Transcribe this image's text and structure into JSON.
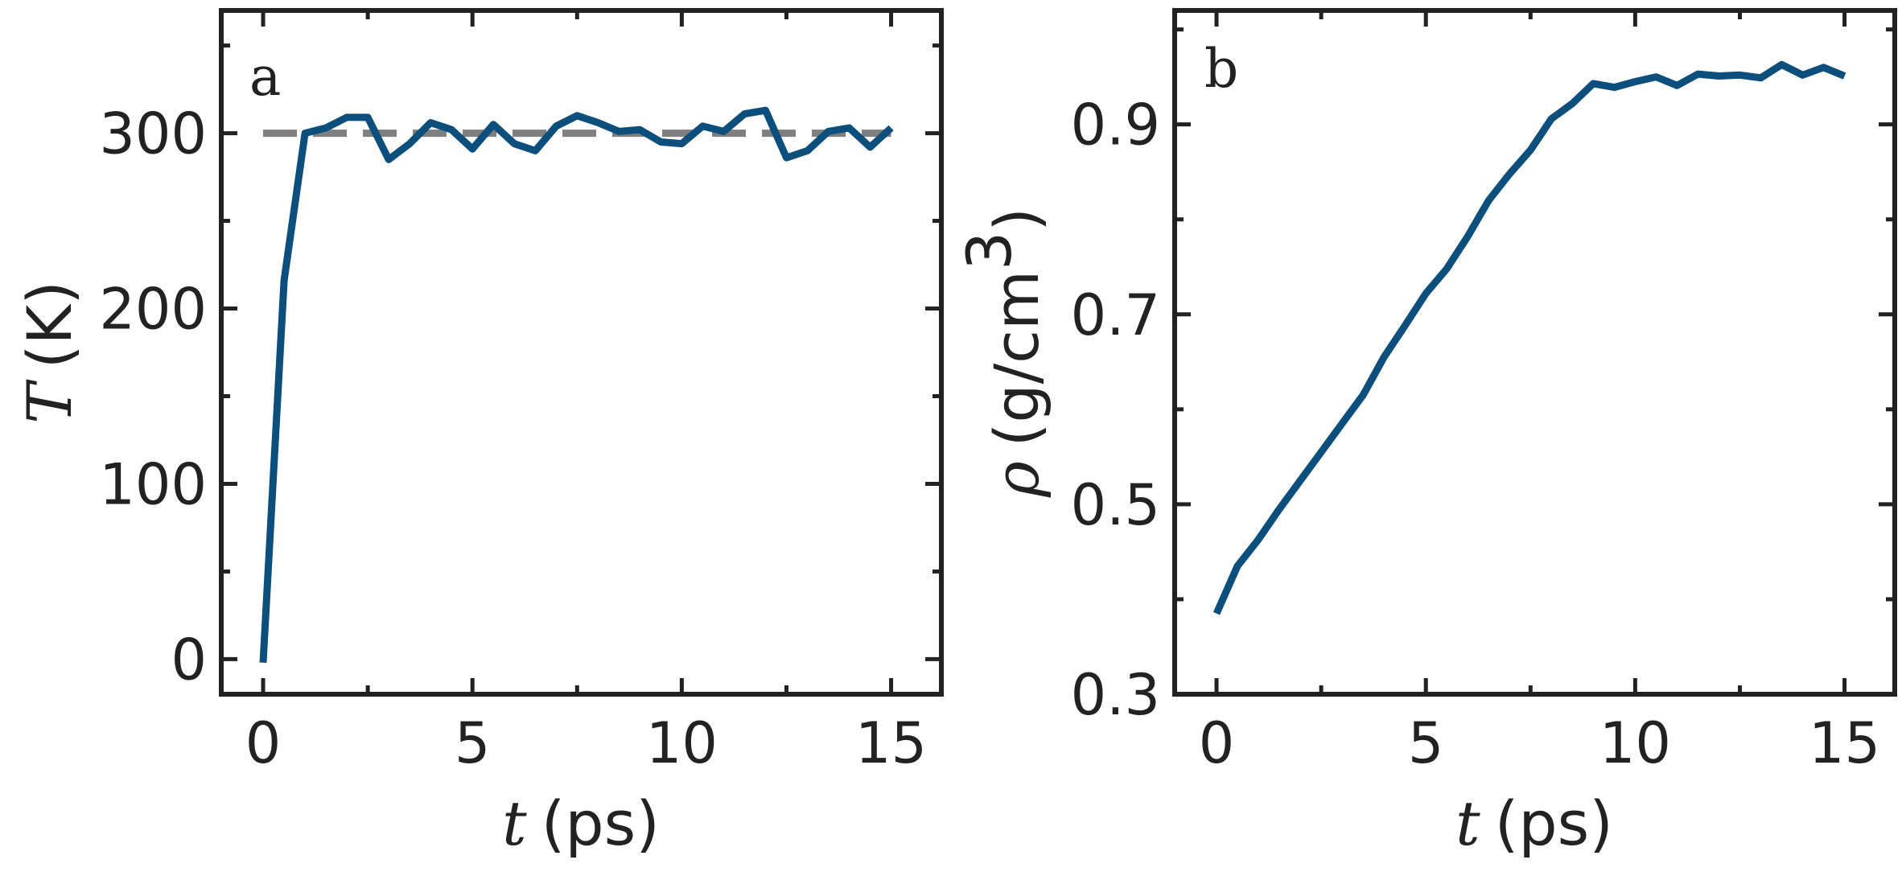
{
  "colors": {
    "series": "#0d4f7c",
    "reference": "#7f7f7f",
    "axes": "#222222"
  },
  "chart_data": [
    {
      "type": "line",
      "panel": "a",
      "xlabel": {
        "var": "t",
        "unit": "(ps)"
      },
      "ylabel": {
        "var": "T",
        "unit": "(K)"
      },
      "xlim": [
        -1,
        16.2
      ],
      "ylim": [
        -20,
        370
      ],
      "xticks": [
        0,
        5,
        10,
        15
      ],
      "yticks": [
        0,
        100,
        200,
        300
      ],
      "xtick_labels": [
        "0",
        "5",
        "10",
        "15"
      ],
      "ytick_labels": [
        "0",
        "100",
        "200",
        "300"
      ],
      "x_minor_ticks": [
        2.5,
        7.5,
        12.5
      ],
      "y_minor_ticks": [
        50,
        150,
        250,
        350
      ],
      "series": [
        {
          "x": [
            0,
            0.5,
            1.0,
            1.5,
            2.0,
            2.5,
            3.0,
            3.5,
            4.0,
            4.5,
            5.0,
            5.5,
            6.0,
            6.5,
            7.0,
            7.5,
            8.0,
            8.5,
            9.0,
            9.5,
            10.0,
            10.5,
            11.0,
            11.5,
            12.0,
            12.5,
            13.0,
            13.5,
            14.0,
            14.5,
            15.0
          ],
          "y": [
            -2,
            216,
            300,
            303,
            309,
            309,
            285,
            294,
            306,
            302,
            291,
            305,
            294,
            290,
            304,
            310,
            306,
            301,
            302,
            295,
            294,
            304,
            301,
            311,
            313,
            286,
            290,
            301,
            303,
            292,
            303
          ]
        }
      ],
      "reference_line": {
        "y": 300,
        "x": [
          0,
          15
        ],
        "style": "dashed"
      }
    },
    {
      "type": "line",
      "panel": "b",
      "xlabel": {
        "var": "t",
        "unit": "(ps)"
      },
      "ylabel": {
        "var": "ρ",
        "unit": "(g/cm",
        "sup": "3",
        "close": ")"
      },
      "xlim": [
        -1,
        16.2
      ],
      "ylim": [
        0.3,
        1.02
      ],
      "xticks": [
        0,
        5,
        10,
        15
      ],
      "yticks": [
        0.3,
        0.5,
        0.7,
        0.9
      ],
      "xtick_labels": [
        "0",
        "5",
        "10",
        "15"
      ],
      "ytick_labels": [
        "0.3",
        "0.5",
        "0.7",
        "0.9"
      ],
      "x_minor_ticks": [
        2.5,
        7.5,
        12.5
      ],
      "y_minor_ticks": [
        0.4,
        0.6,
        0.8,
        1.0
      ],
      "series": [
        {
          "x": [
            0,
            0.5,
            1.0,
            1.5,
            2.0,
            2.5,
            3.0,
            3.5,
            4.0,
            4.5,
            5.0,
            5.5,
            6.0,
            6.5,
            7.0,
            7.5,
            8.0,
            8.5,
            9.0,
            9.5,
            10.0,
            10.5,
            11.0,
            11.5,
            12.0,
            12.5,
            13.0,
            13.5,
            14.0,
            14.5,
            15.0
          ],
          "y": [
            0.385,
            0.435,
            0.463,
            0.495,
            0.525,
            0.555,
            0.585,
            0.615,
            0.655,
            0.688,
            0.722,
            0.748,
            0.782,
            0.82,
            0.848,
            0.873,
            0.906,
            0.922,
            0.943,
            0.939,
            0.945,
            0.95,
            0.941,
            0.953,
            0.951,
            0.952,
            0.949,
            0.963,
            0.952,
            0.96,
            0.951
          ]
        }
      ]
    }
  ]
}
